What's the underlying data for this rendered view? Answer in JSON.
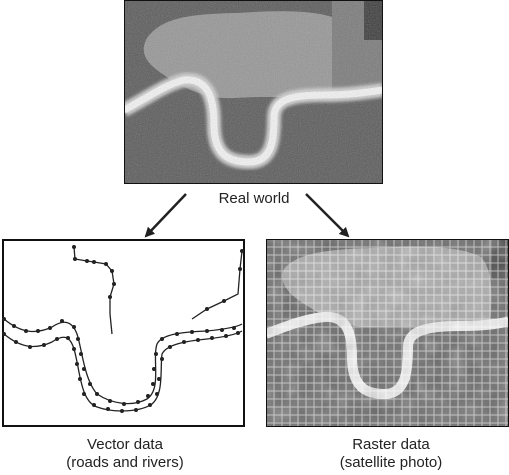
{
  "labels": {
    "real_world": "Real world",
    "vector_title": "Vector data",
    "vector_sub": "(roads and rivers)",
    "raster_title": "Raster data",
    "raster_sub": "(satellite photo)"
  },
  "colors": {
    "photo_dark": "#4a4a4a",
    "photo_mid": "#6e6e6e",
    "photo_light": "#9a9a9a",
    "river": "#f2f2f2",
    "line": "#222222",
    "border": "#111111"
  }
}
